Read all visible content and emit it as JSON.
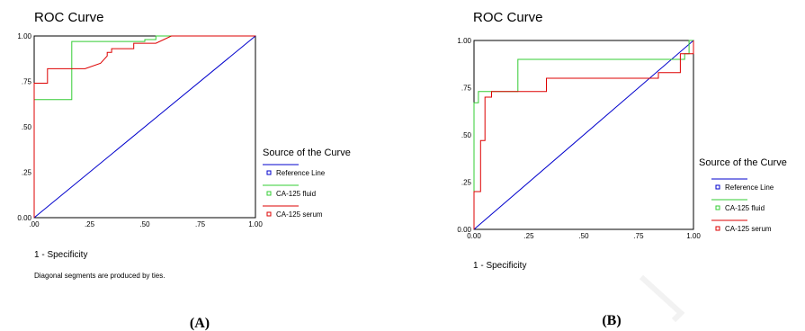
{
  "chart_data": [
    {
      "type": "line",
      "panel_label": "(A)",
      "title": "ROC Curve",
      "xlabel": "1 - Specificity",
      "ylabel": "",
      "xlim": [
        0,
        1
      ],
      "ylim": [
        0,
        1
      ],
      "xticks": [
        ".00",
        ".25",
        ".50",
        ".75",
        "1.00"
      ],
      "yticks": [
        "0.00",
        ".25",
        ".50",
        ".75",
        "1.00"
      ],
      "xtick_values": [
        0,
        0.25,
        0.5,
        0.75,
        1
      ],
      "ytick_values": [
        0,
        0.25,
        0.5,
        0.75,
        1
      ],
      "note": "Diagonal segments are produced by ties.",
      "legend_title": "Source of the Curve",
      "legend_position": "right",
      "series": [
        {
          "name": "Reference Line",
          "color": "#0000cc",
          "points": [
            [
              0,
              0
            ],
            [
              1,
              1
            ]
          ]
        },
        {
          "name": "CA-125 fluid",
          "color": "#33cc33",
          "points": [
            [
              0,
              0
            ],
            [
              0,
              0.65
            ],
            [
              0.17,
              0.65
            ],
            [
              0.17,
              0.97
            ],
            [
              0.5,
              0.97
            ],
            [
              0.5,
              0.98
            ],
            [
              0.55,
              0.98
            ],
            [
              0.55,
              1
            ],
            [
              1,
              1
            ]
          ]
        },
        {
          "name": "CA-125 serum",
          "color": "#dd0000",
          "points": [
            [
              0,
              0
            ],
            [
              0,
              0.74
            ],
            [
              0.06,
              0.74
            ],
            [
              0.06,
              0.82
            ],
            [
              0.23,
              0.82
            ],
            [
              0.3,
              0.85
            ],
            [
              0.33,
              0.89
            ],
            [
              0.33,
              0.91
            ],
            [
              0.35,
              0.91
            ],
            [
              0.35,
              0.93
            ],
            [
              0.45,
              0.93
            ],
            [
              0.45,
              0.96
            ],
            [
              0.55,
              0.96
            ],
            [
              0.62,
              1
            ],
            [
              1,
              1
            ]
          ]
        }
      ]
    },
    {
      "type": "line",
      "panel_label": "(B)",
      "title": "ROC Curve",
      "xlabel": "1 - Specificity",
      "ylabel": "",
      "xlim": [
        0,
        1
      ],
      "ylim": [
        0,
        1
      ],
      "xticks": [
        "0.00",
        ".25",
        ".50",
        ".75",
        "1.00"
      ],
      "yticks": [
        "0.00",
        ".25",
        ".50",
        ".75",
        "1.00"
      ],
      "xtick_values": [
        0,
        0.25,
        0.5,
        0.75,
        1
      ],
      "ytick_values": [
        0,
        0.25,
        0.5,
        0.75,
        1
      ],
      "note": "",
      "legend_title": "Source of the Curve",
      "legend_position": "right",
      "series": [
        {
          "name": "Reference Line",
          "color": "#0000cc",
          "points": [
            [
              0,
              0
            ],
            [
              1,
              1
            ]
          ]
        },
        {
          "name": "CA-125 fluid",
          "color": "#33cc33",
          "points": [
            [
              0,
              0
            ],
            [
              0,
              0.67
            ],
            [
              0.02,
              0.67
            ],
            [
              0.02,
              0.73
            ],
            [
              0.2,
              0.73
            ],
            [
              0.2,
              0.9
            ],
            [
              0.96,
              0.9
            ],
            [
              0.96,
              0.93
            ],
            [
              0.98,
              0.93
            ],
            [
              0.98,
              1
            ],
            [
              1,
              1
            ]
          ]
        },
        {
          "name": "CA-125 serum",
          "color": "#dd0000",
          "points": [
            [
              0,
              0
            ],
            [
              0,
              0.2
            ],
            [
              0.03,
              0.2
            ],
            [
              0.03,
              0.47
            ],
            [
              0.05,
              0.47
            ],
            [
              0.05,
              0.7
            ],
            [
              0.08,
              0.7
            ],
            [
              0.08,
              0.73
            ],
            [
              0.33,
              0.73
            ],
            [
              0.33,
              0.8
            ],
            [
              0.84,
              0.8
            ],
            [
              0.84,
              0.83
            ],
            [
              0.94,
              0.83
            ],
            [
              0.94,
              0.93
            ],
            [
              1,
              0.93
            ],
            [
              1,
              1
            ]
          ]
        }
      ]
    }
  ]
}
